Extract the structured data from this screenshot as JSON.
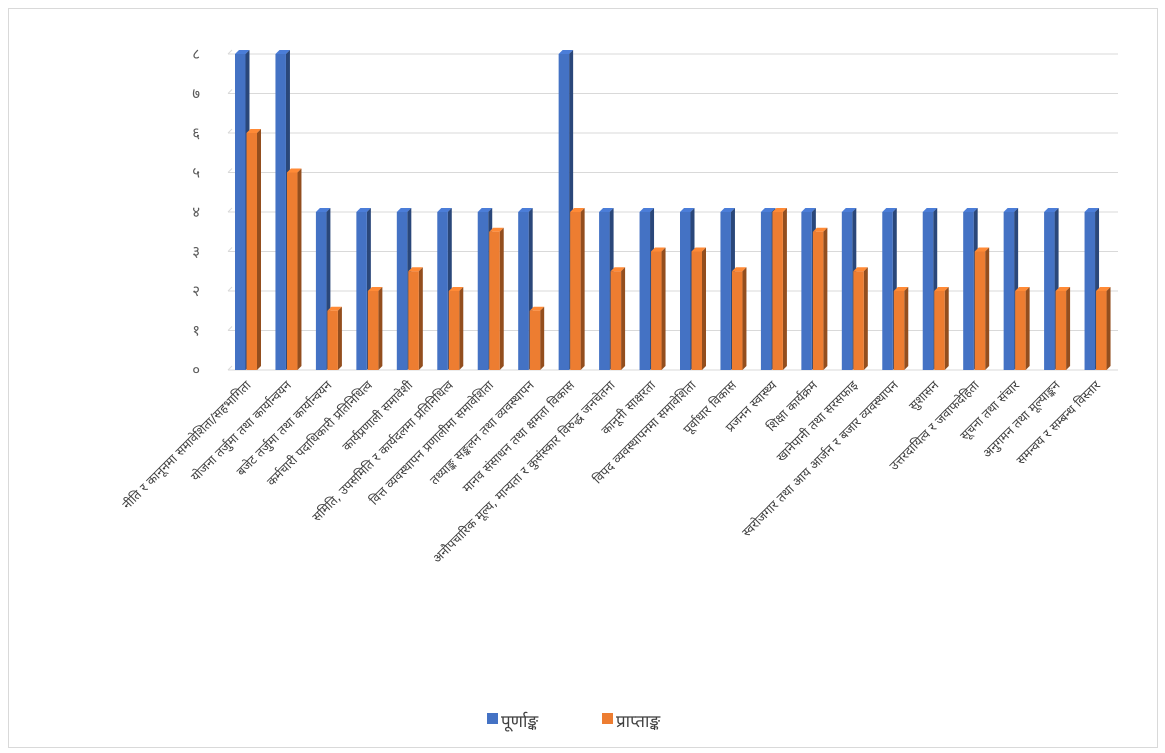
{
  "chart_data": {
    "type": "bar",
    "categories": [
      "नीति र कानूनमा समावेशिता/सहभागिता",
      "योजना तर्जुमा तथा कार्यान्वयन",
      "बजेट तर्जुमा तथा कार्यान्वयन",
      "कर्मचारी पदाधिकारी प्रतिनिधित्व",
      "कार्यप्रणाली समावेशी",
      "समिति, उपसमिति र कार्यदलमा प्रतिनिधित्व",
      "वित्त व्यवस्थापन प्रणालीमा समावेशिता",
      "तथ्याङ्क सङ्कलन तथा व्यवस्थापन",
      "मानव संसाधन तथा क्षमता विकास",
      "अनौपचारिक मूल्य, मान्यता र कुसंस्कार विरुद्ध जनचेतना",
      "कानूनी साक्षरता",
      "विपद व्यवस्थापनमा समावेशिता",
      "पूर्वाधार विकास",
      "प्रजनन स्वास्थ्य",
      "शिक्षा कार्यक्रम",
      "खानेपानी तथा सरसफाइ",
      "स्वरोजगार तथा आय आर्जन र बजार व्यवस्थापन",
      "सुशासन",
      "उत्तरदायित्व र जवाफदेहिता",
      "सूचना तथा संचार",
      "अनुगमन तथा मूल्याङ्कन",
      "समन्वय र सम्बन्ध विस्तार"
    ],
    "series": [
      {
        "name": "पूर्णाङ्क",
        "color": "#4472c4",
        "values": [
          8,
          8,
          4,
          4,
          4,
          4,
          4,
          4,
          8,
          4,
          4,
          4,
          4,
          4,
          4,
          4,
          4,
          4,
          4,
          4,
          4,
          4
        ]
      },
      {
        "name": "प्राप्ताङ्क",
        "color": "#ed7d31",
        "values": [
          6,
          5,
          1.5,
          2,
          2.5,
          2,
          3.5,
          1.5,
          4,
          2.5,
          3,
          3,
          2.5,
          4,
          3.5,
          2.5,
          2,
          2,
          3,
          2,
          2,
          2
        ]
      }
    ],
    "yticks": [
      "०",
      "१",
      "२",
      "३",
      "४",
      "५",
      "६",
      "७",
      "८"
    ],
    "ylim": [
      0,
      8
    ],
    "grid": true,
    "legend_position": "bottom"
  }
}
